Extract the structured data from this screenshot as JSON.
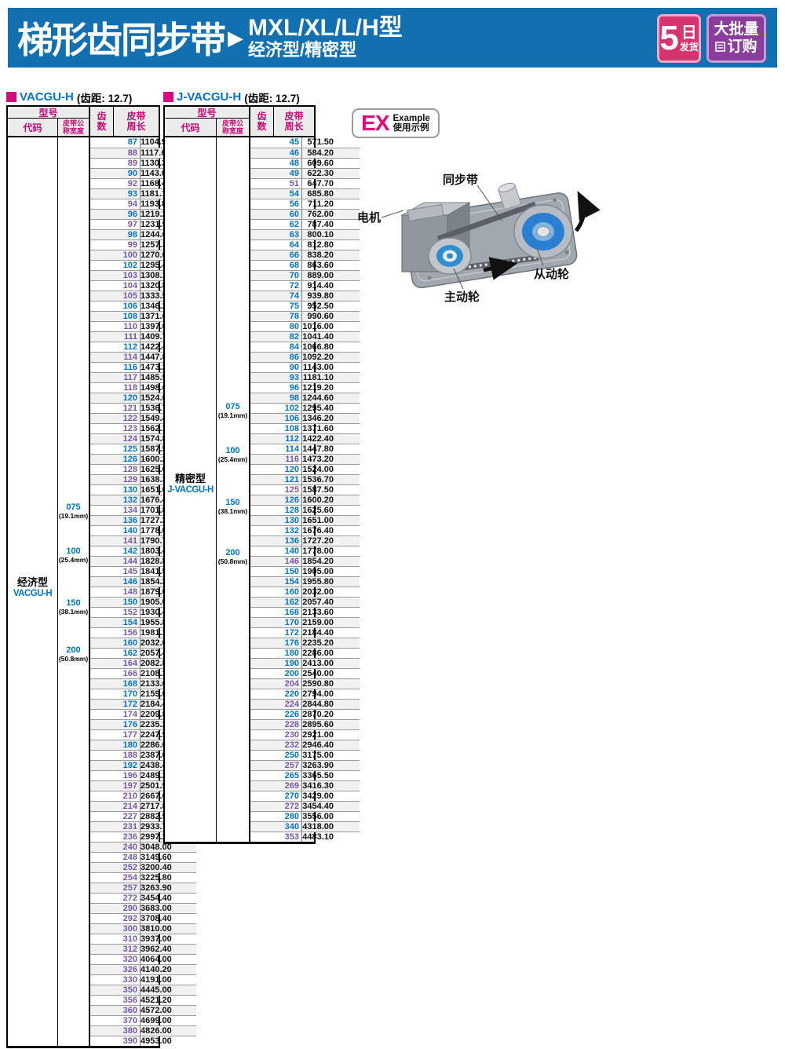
{
  "header": {
    "title": "梯形齿同步带",
    "arrow": "▶",
    "subtitle1": "MXL/XL/L/H型",
    "subtitle2": "经济型/精密型",
    "badge_shipping": {
      "big": "5",
      "day": "日",
      "small": "发货"
    },
    "badge_bulk": {
      "line1": "大批量",
      "line2": "订购"
    }
  },
  "example": {
    "ex": "EX",
    "label_en": "Example",
    "label_cn": "使用示例",
    "labels": {
      "motor": "电机",
      "belt": "同步带",
      "driven": "从动轮",
      "driving": "主动轮"
    }
  },
  "tables": [
    {
      "name": "VACGU-H",
      "pitch": "(齿距: 12.7)",
      "headers": {
        "model": "型号",
        "code": "代码",
        "width1": "皮带公",
        "width2": "称宽度",
        "teeth1": "齿",
        "teeth2": "数",
        "len1": "皮带",
        "len2": "周长"
      },
      "type_label": "经济型",
      "type_code": "VACGU-H",
      "widths": [
        {
          "code": "075",
          "mm": "(19.1mm)"
        },
        {
          "code": "100",
          "mm": "(25.4mm)"
        },
        {
          "code": "150",
          "mm": "(38.1mm)"
        },
        {
          "code": "200",
          "mm": "(50.8mm)"
        }
      ],
      "rows": [
        [
          87,
          "1104.90",
          "b"
        ],
        [
          88,
          "1117.60",
          "p"
        ],
        [
          89,
          "1130.30",
          "p"
        ],
        [
          90,
          "1143.00",
          "b"
        ],
        [
          92,
          "1168.40",
          "p"
        ],
        [
          93,
          "1181.10",
          "b"
        ],
        [
          94,
          "1193.80",
          "p"
        ],
        [
          96,
          "1219.20",
          "b"
        ],
        [
          97,
          "1231.90",
          "p"
        ],
        [
          98,
          "1244.60",
          "b"
        ],
        [
          99,
          "1257.30",
          "p"
        ],
        [
          100,
          "1270.00",
          "p"
        ],
        [
          102,
          "1295.40",
          "b"
        ],
        [
          103,
          "1308.10",
          "p"
        ],
        [
          104,
          "1320.80",
          "p"
        ],
        [
          105,
          "1333.50",
          "p"
        ],
        [
          106,
          "1346.20",
          "b"
        ],
        [
          108,
          "1371.60",
          "b"
        ],
        [
          110,
          "1397.00",
          "p"
        ],
        [
          111,
          "1409.70",
          "p"
        ],
        [
          112,
          "1422.40",
          "b"
        ],
        [
          114,
          "1447.80",
          "p"
        ],
        [
          116,
          "1473.20",
          "b"
        ],
        [
          117,
          "1485.90",
          "p"
        ],
        [
          118,
          "1498.60",
          "p"
        ],
        [
          120,
          "1524.00",
          "b"
        ],
        [
          121,
          "1536.70",
          "p"
        ],
        [
          122,
          "1549.40",
          "p"
        ],
        [
          123,
          "1562.10",
          "p"
        ],
        [
          124,
          "1574.80",
          "p"
        ],
        [
          125,
          "1587.50",
          "b"
        ],
        [
          126,
          "1600.20",
          "b"
        ],
        [
          128,
          "1625.60",
          "p"
        ],
        [
          129,
          "1638.30",
          "p"
        ],
        [
          130,
          "1651.00",
          "b"
        ],
        [
          132,
          "1676.40",
          "b"
        ],
        [
          134,
          "1701.80",
          "p"
        ],
        [
          136,
          "1727.20",
          "b"
        ],
        [
          140,
          "1778.00",
          "b"
        ],
        [
          141,
          "1790.70",
          "p"
        ],
        [
          142,
          "1803.40",
          "b"
        ],
        [
          144,
          "1828.80",
          "p"
        ],
        [
          145,
          "1841.50",
          "p"
        ],
        [
          146,
          "1854.20",
          "b"
        ],
        [
          148,
          "1879.60",
          "p"
        ],
        [
          150,
          "1905.00",
          "b"
        ],
        [
          152,
          "1930.40",
          "p"
        ],
        [
          154,
          "1955.80",
          "b"
        ],
        [
          156,
          "1981.20",
          "p"
        ],
        [
          160,
          "2032.00",
          "b"
        ],
        [
          162,
          "2057.40",
          "b"
        ],
        [
          164,
          "2082.80",
          "p"
        ],
        [
          166,
          "2108.20",
          "p"
        ],
        [
          168,
          "2133.60",
          "b"
        ],
        [
          170,
          "2159.00",
          "b"
        ],
        [
          172,
          "2184.40",
          "b"
        ],
        [
          174,
          "2209.80",
          "p"
        ],
        [
          176,
          "2235.20",
          "b"
        ],
        [
          177,
          "2247.90",
          "p"
        ],
        [
          180,
          "2286.00",
          "b"
        ],
        [
          188,
          "2387.60",
          "p"
        ],
        [
          192,
          "2438.40",
          "b"
        ],
        [
          196,
          "2489.20",
          "p"
        ],
        [
          197,
          "2501.90",
          "p"
        ],
        [
          210,
          "2667.00",
          "p"
        ],
        [
          214,
          "2717.80",
          "p"
        ],
        [
          227,
          "2882.90",
          "p"
        ],
        [
          231,
          "2933.70",
          "p"
        ],
        [
          236,
          "2997.20",
          "p"
        ],
        [
          240,
          "3048.00",
          "p"
        ],
        [
          248,
          "3149.60",
          "p"
        ],
        [
          252,
          "3200.40",
          "p"
        ],
        [
          254,
          "3225.80",
          "p"
        ],
        [
          257,
          "3263.90",
          "p"
        ],
        [
          272,
          "3454.40",
          "p"
        ],
        [
          290,
          "3683.00",
          "p"
        ],
        [
          292,
          "3708.40",
          "p"
        ],
        [
          300,
          "3810.00",
          "p"
        ],
        [
          310,
          "3937.00",
          "p"
        ],
        [
          312,
          "3962.40",
          "p"
        ],
        [
          320,
          "4064.00",
          "p"
        ],
        [
          326,
          "4140.20",
          "p"
        ],
        [
          330,
          "4191.00",
          "p"
        ],
        [
          350,
          "4445.00",
          "p"
        ],
        [
          356,
          "4521.20",
          "p"
        ],
        [
          360,
          "4572.00",
          "p"
        ],
        [
          370,
          "4699.00",
          "p"
        ],
        [
          380,
          "4826.00",
          "p"
        ],
        [
          390,
          "4953.00",
          "p"
        ]
      ]
    },
    {
      "name": "J-VACGU-H",
      "pitch": "(齿距: 12.7)",
      "headers": {
        "model": "型号",
        "code": "代码",
        "width1": "皮带公",
        "width2": "称宽度",
        "teeth1": "齿",
        "teeth2": "数",
        "len1": "皮带",
        "len2": "周长"
      },
      "type_label": "精密型",
      "type_code": "J-VACGU-H",
      "widths": [
        {
          "code": "075",
          "mm": "(19.1mm)"
        },
        {
          "code": "100",
          "mm": "(25.4mm)"
        },
        {
          "code": "150",
          "mm": "(38.1mm)"
        },
        {
          "code": "200",
          "mm": "(50.8mm)"
        }
      ],
      "rows": [
        [
          45,
          "571.50",
          "b"
        ],
        [
          46,
          "584.20",
          "b"
        ],
        [
          48,
          "609.60",
          "b"
        ],
        [
          49,
          "622.30",
          "b"
        ],
        [
          51,
          "647.70",
          "p"
        ],
        [
          54,
          "685.80",
          "b"
        ],
        [
          56,
          "711.20",
          "b"
        ],
        [
          60,
          "762.00",
          "b"
        ],
        [
          62,
          "787.40",
          "b"
        ],
        [
          63,
          "800.10",
          "b"
        ],
        [
          64,
          "812.80",
          "b"
        ],
        [
          66,
          "838.20",
          "b"
        ],
        [
          68,
          "863.60",
          "b"
        ],
        [
          70,
          "889.00",
          "b"
        ],
        [
          72,
          "914.40",
          "b"
        ],
        [
          74,
          "939.80",
          "b"
        ],
        [
          75,
          "952.50",
          "b"
        ],
        [
          78,
          "990.60",
          "b"
        ],
        [
          80,
          "1016.00",
          "b"
        ],
        [
          82,
          "1041.40",
          "b"
        ],
        [
          84,
          "1066.80",
          "b"
        ],
        [
          86,
          "1092.20",
          "b"
        ],
        [
          90,
          "1143.00",
          "b"
        ],
        [
          93,
          "1181.10",
          "b"
        ],
        [
          96,
          "1219.20",
          "b"
        ],
        [
          98,
          "1244.60",
          "b"
        ],
        [
          102,
          "1295.40",
          "b"
        ],
        [
          106,
          "1346.20",
          "b"
        ],
        [
          108,
          "1371.60",
          "b"
        ],
        [
          112,
          "1422.40",
          "b"
        ],
        [
          114,
          "1447.80",
          "b"
        ],
        [
          116,
          "1473.20",
          "p"
        ],
        [
          120,
          "1524.00",
          "b"
        ],
        [
          121,
          "1536.70",
          "b"
        ],
        [
          125,
          "1587.50",
          "p"
        ],
        [
          126,
          "1600.20",
          "b"
        ],
        [
          128,
          "1625.60",
          "b"
        ],
        [
          130,
          "1651.00",
          "b"
        ],
        [
          132,
          "1676.40",
          "b"
        ],
        [
          136,
          "1727.20",
          "b"
        ],
        [
          140,
          "1778.00",
          "b"
        ],
        [
          146,
          "1854.20",
          "p"
        ],
        [
          150,
          "1905.00",
          "b"
        ],
        [
          154,
          "1955.80",
          "b"
        ],
        [
          160,
          "2032.00",
          "b"
        ],
        [
          162,
          "2057.40",
          "b"
        ],
        [
          168,
          "2133.60",
          "b"
        ],
        [
          170,
          "2159.00",
          "b"
        ],
        [
          172,
          "2184.40",
          "b"
        ],
        [
          176,
          "2235.20",
          "b"
        ],
        [
          180,
          "2286.00",
          "b"
        ],
        [
          190,
          "2413.00",
          "b"
        ],
        [
          200,
          "2540.00",
          "b"
        ],
        [
          204,
          "2590.80",
          "p"
        ],
        [
          220,
          "2794.00",
          "b"
        ],
        [
          224,
          "2844.80",
          "p"
        ],
        [
          226,
          "2870.20",
          "b"
        ],
        [
          228,
          "2895.60",
          "p"
        ],
        [
          230,
          "2921.00",
          "p"
        ],
        [
          232,
          "2946.40",
          "p"
        ],
        [
          250,
          "3175.00",
          "b"
        ],
        [
          257,
          "3263.90",
          "p"
        ],
        [
          265,
          "3365.50",
          "b"
        ],
        [
          269,
          "3416.30",
          "p"
        ],
        [
          270,
          "3429.00",
          "b"
        ],
        [
          272,
          "3454.40",
          "p"
        ],
        [
          280,
          "3556.00",
          "b"
        ],
        [
          340,
          "4318.00",
          "b"
        ],
        [
          353,
          "4483.10",
          "p"
        ]
      ]
    }
  ],
  "colors": {
    "banner_blue": "#1270b0",
    "magenta": "#d60b80",
    "header_text": "#c70774",
    "teeth_blue": "#0073c8",
    "teeth_purple": "#7757a8",
    "badge_pink": "#d5346e",
    "badge_purple": "#8a3d9c"
  }
}
